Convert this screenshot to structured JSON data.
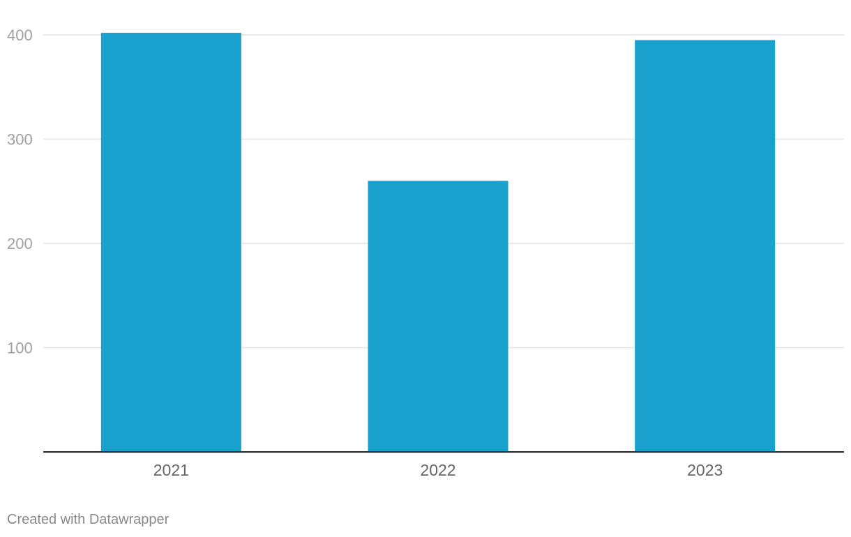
{
  "chart_data": {
    "type": "bar",
    "categories": [
      "2021",
      "2022",
      "2023"
    ],
    "values": [
      402,
      260,
      395
    ],
    "title": "",
    "xlabel": "",
    "ylabel": "",
    "ylim": [
      0,
      400
    ],
    "yticks": [
      100,
      200,
      300,
      400
    ],
    "grid": true,
    "legend": "none",
    "bar_color": "#1aa1cd"
  },
  "footer": {
    "credit": "Created with Datawrapper"
  }
}
